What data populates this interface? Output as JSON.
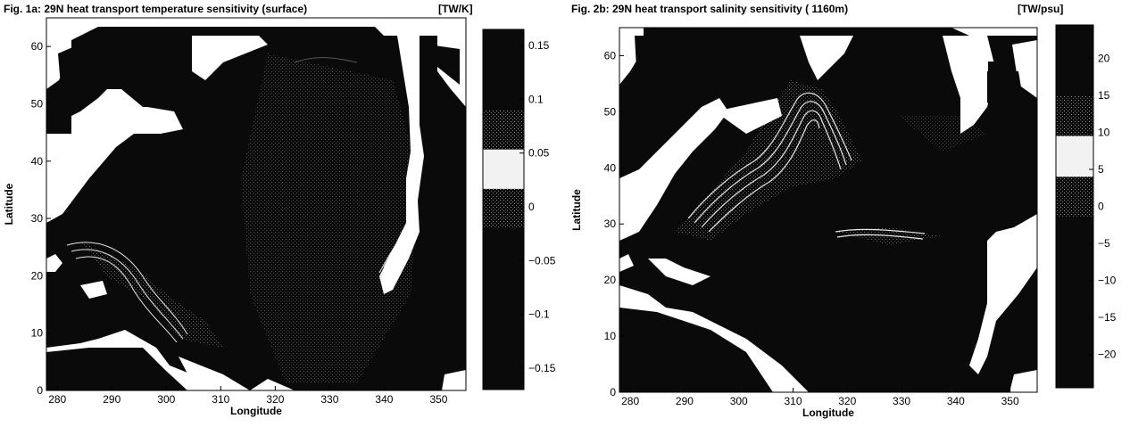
{
  "chart_data": [
    {
      "type": "heatmap",
      "title": "Fig. 1a: 29N heat transport temperature sensitivity (surface)",
      "unit": "[TW/K]",
      "xlabel": "Longitude",
      "ylabel": "Latitude",
      "xlim": [
        278,
        355
      ],
      "ylim": [
        0,
        65
      ],
      "xticks": [
        280,
        290,
        300,
        310,
        320,
        330,
        340,
        350
      ],
      "yticks": [
        0,
        10,
        20,
        30,
        40,
        50,
        60
      ],
      "colorbar": {
        "range": [
          -0.17,
          0.165
        ],
        "ticks": [
          0.15,
          0.1,
          0.05,
          0,
          -0.05,
          -0.1,
          -0.15
        ],
        "tick_labels": [
          "0.15",
          "0.1",
          "0.05",
          "0",
          "−0.05",
          "−0.1",
          "−0.15"
        ],
        "light_band": [
          -0.02,
          0.09
        ]
      },
      "land_color": "#ffffff",
      "ocean_color": "#0a0a0a",
      "contour_color": "#e6e6e6"
    },
    {
      "type": "heatmap",
      "title": "Fig. 2b: 29N heat transport salinity sensitivity ( 1160m)",
      "unit": "[TW/psu]",
      "xlabel": "Longitude",
      "ylabel": "Latitude",
      "xlim": [
        278,
        355
      ],
      "ylim": [
        0,
        65
      ],
      "xticks": [
        280,
        290,
        300,
        310,
        320,
        330,
        340,
        350
      ],
      "yticks": [
        0,
        10,
        20,
        30,
        40,
        50,
        60
      ],
      "colorbar": {
        "range": [
          -24.5,
          24.5
        ],
        "ticks": [
          20,
          15,
          10,
          5,
          0,
          -5,
          -10,
          -15,
          -20
        ],
        "tick_labels": [
          "20",
          "15",
          "10",
          "5",
          "0",
          "−5",
          "−10",
          "−15",
          "−20"
        ],
        "light_band": [
          -1.5,
          15
        ]
      },
      "land_color": "#ffffff",
      "ocean_color": "#0a0a0a",
      "contour_color": "#e6e6e6"
    }
  ]
}
